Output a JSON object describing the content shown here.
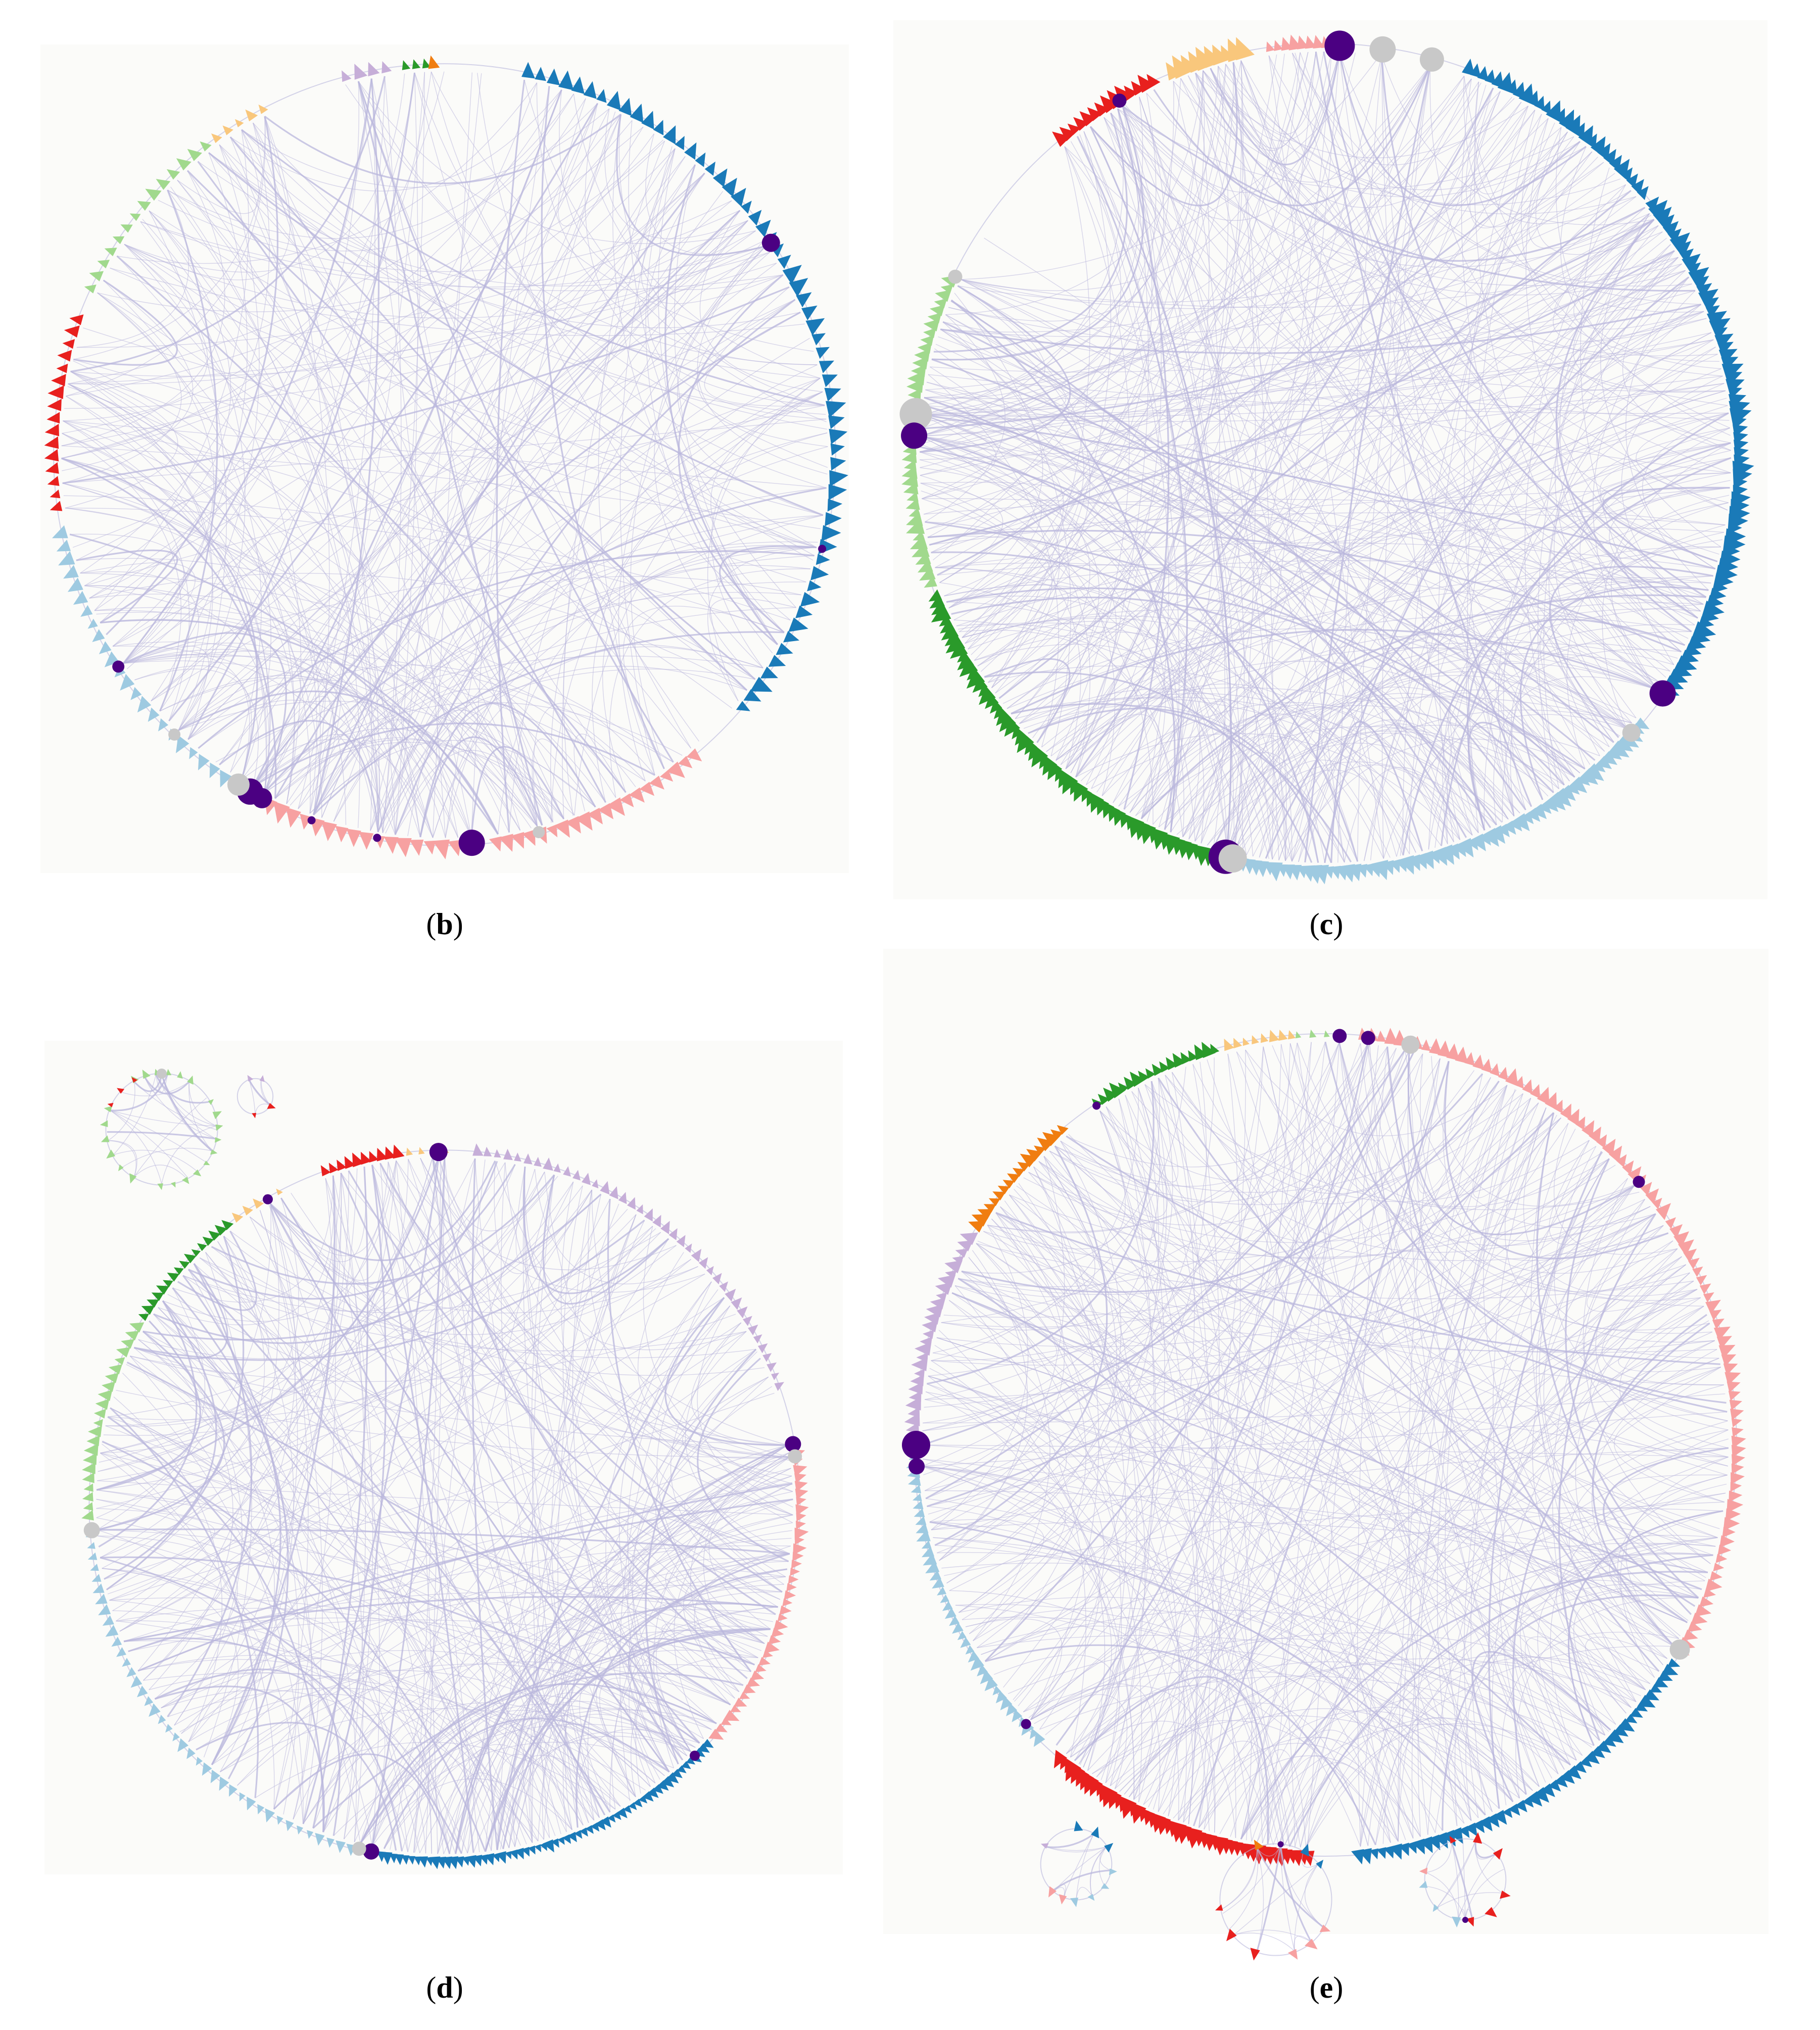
{
  "captions": {
    "b": "b",
    "c": "c",
    "d": "d",
    "e": "e"
  },
  "colors": {
    "edge": "#b9b7dc",
    "hub": "#4b0082",
    "hub_light": "#c8c8c8",
    "blue": "#1a7ab8",
    "light_blue": "#9ecae1",
    "pink": "#f7a1a1",
    "red": "#e8201e",
    "light_green": "#a1d98d",
    "green": "#2a9a2a",
    "orange": "#f07d10",
    "light_orange": "#f9c77c",
    "lavender": "#c6aed8"
  }
}
